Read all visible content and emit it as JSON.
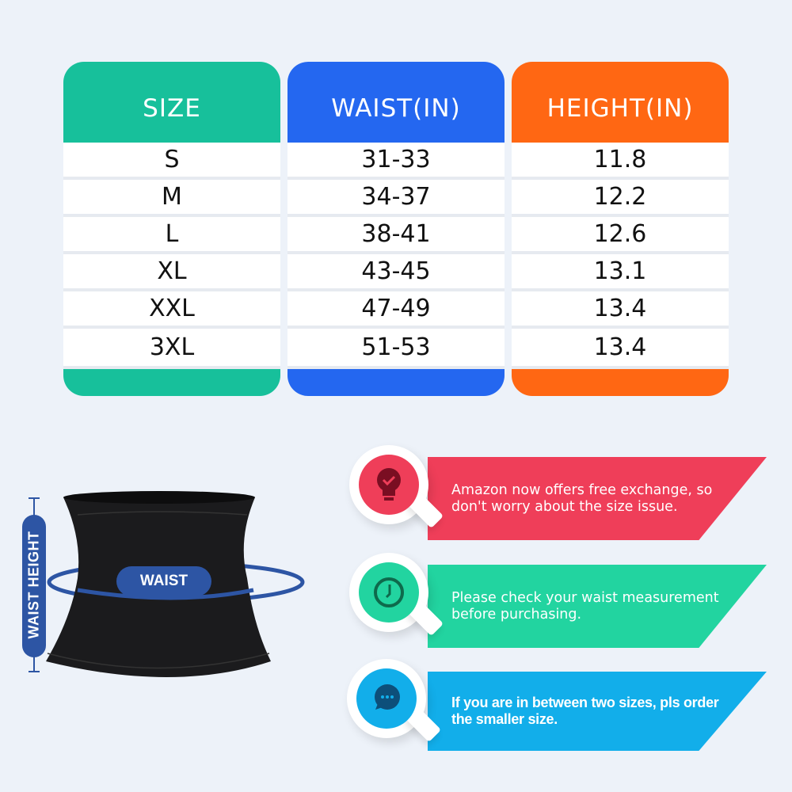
{
  "table": {
    "columns": [
      {
        "header": "SIZE",
        "color": "#17c09b",
        "values": [
          "S",
          "M",
          "L",
          "XL",
          "XXL",
          "3XL"
        ]
      },
      {
        "header": "WAIST(IN)",
        "color": "#2467f0",
        "values": [
          "31-33",
          "34-37",
          "38-41",
          "43-45",
          "47-49",
          "51-53"
        ]
      },
      {
        "header": "HEIGHT(IN)",
        "color": "#ff6713",
        "values": [
          "11.8",
          "12.2",
          "12.6",
          "13.1",
          "13.4",
          "13.4"
        ]
      }
    ]
  },
  "diagram": {
    "waist_label": "WAIST",
    "height_label": "WAIST HEIGHT",
    "accent": "#2d55a4"
  },
  "tips": [
    {
      "text": "Amazon now offers free exchange, so don't worry about the size issue.",
      "color": "#ef3e59",
      "icon": "lightbulb-check-icon"
    },
    {
      "text": "Please check your waist measurement before purchasing.",
      "color": "#22d4a0",
      "icon": "clock-icon"
    },
    {
      "text": "If you are in between two sizes, pls order the smaller size.",
      "color": "#12aeea",
      "icon": "chat-bubble-icon"
    }
  ]
}
